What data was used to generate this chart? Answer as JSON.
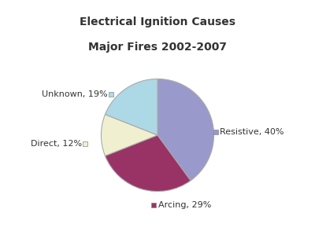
{
  "title_line1": "Electrical Ignition Causes",
  "title_line2": "Major Fires 2002-2007",
  "labels": [
    "Resistive",
    "Arcing",
    "Direct",
    "Unknown"
  ],
  "values": [
    40,
    29,
    12,
    19
  ],
  "colors": [
    "#9999cc",
    "#993366",
    "#f0f0d0",
    "#add8e6"
  ],
  "legend_labels": [
    "Resistive, 40%",
    "Arcing, 29%",
    "Direct, 12%",
    "Unknown, 19%"
  ],
  "background_color": "#ffffff",
  "startangle": 90,
  "title_fontsize": 10,
  "label_fontsize": 8
}
